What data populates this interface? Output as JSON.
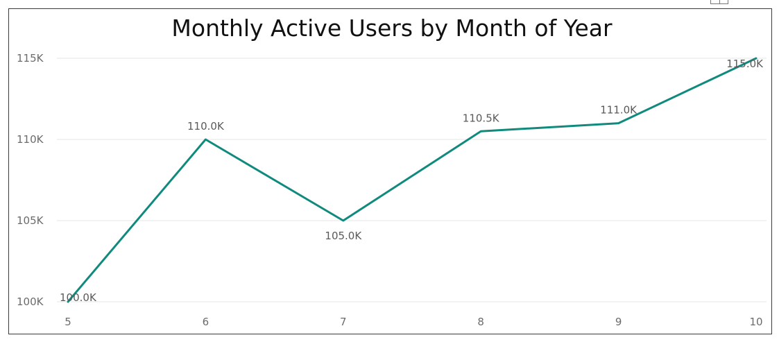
{
  "chart_data": {
    "type": "line",
    "title": "Monthly Active Users by Month of Year",
    "xlabel": "",
    "ylabel": "",
    "x": [
      5,
      6,
      7,
      8,
      9,
      10
    ],
    "x_tick_labels": [
      "5",
      "6",
      "7",
      "8",
      "9",
      "10"
    ],
    "series": [
      {
        "values": [
          100000,
          110000,
          105000,
          110500,
          111000,
          115000
        ],
        "data_labels": [
          "100.0K",
          "110.0K",
          "105.0K",
          "110.5K",
          "111.0K",
          "115.0K"
        ],
        "color": "#118a7e"
      }
    ],
    "ylim": [
      100000,
      115000
    ],
    "y_ticks": [
      100000,
      105000,
      110000,
      115000
    ],
    "y_tick_labels": [
      "100K",
      "105K",
      "110K",
      "115K"
    ],
    "grid": true,
    "legend": "none"
  },
  "colors": {
    "line": "#118a7e",
    "gridline": "#e4e4e4",
    "frame": "#3a3a3a"
  },
  "icons": {
    "corner": "focus-mode-icon"
  }
}
